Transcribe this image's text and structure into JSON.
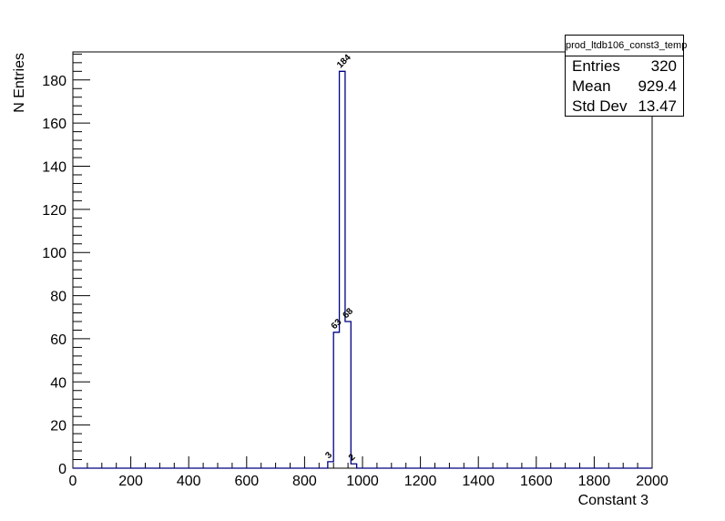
{
  "stats_box": {
    "title": "prod_ltdb106_const3_temp",
    "rows": [
      {
        "label": "Entries",
        "value": "320"
      },
      {
        "label": "Mean",
        "value": "929.4"
      },
      {
        "label": "Std Dev",
        "value": "13.47"
      }
    ]
  },
  "chart_data": {
    "type": "bar",
    "xlabel": "Constant 3",
    "ylabel": "N Entries",
    "xlim": [
      0,
      2000
    ],
    "ylim": [
      0,
      193
    ],
    "bin_width": 20,
    "xticks": [
      0,
      200,
      400,
      600,
      800,
      1000,
      1200,
      1400,
      1600,
      1800,
      2000
    ],
    "yticks": [
      0,
      20,
      40,
      60,
      80,
      100,
      120,
      140,
      160,
      180
    ],
    "bins": [
      {
        "x_low": 880,
        "x_high": 900,
        "value": 3,
        "label": "3"
      },
      {
        "x_low": 900,
        "x_high": 920,
        "value": 63,
        "label": "63"
      },
      {
        "x_low": 920,
        "x_high": 940,
        "value": 184,
        "label": "184"
      },
      {
        "x_low": 940,
        "x_high": 960,
        "value": 68,
        "label": "68"
      },
      {
        "x_low": 960,
        "x_high": 980,
        "value": 2,
        "label": "2"
      }
    ],
    "line_color": "#000080"
  }
}
